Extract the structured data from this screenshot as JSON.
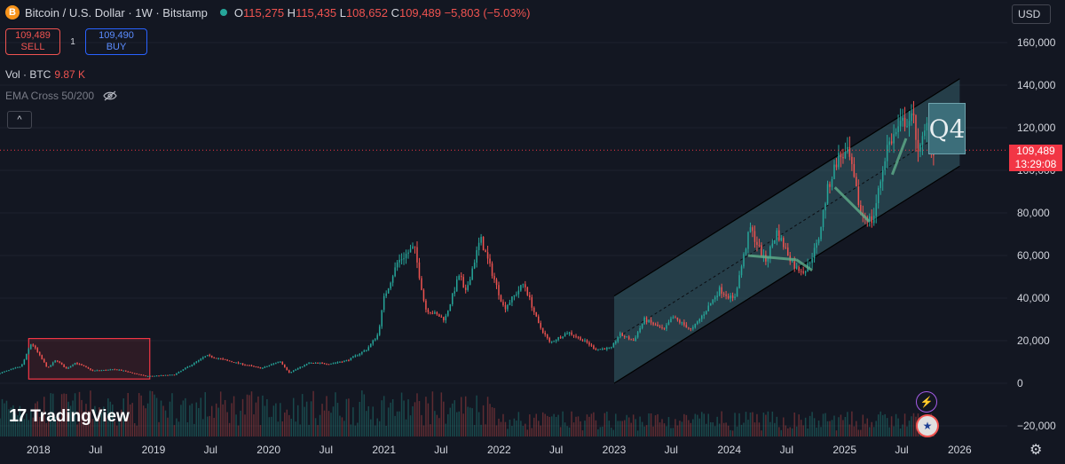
{
  "header": {
    "coin_icon": "B",
    "title": "Bitcoin / U.S. Dollar · 1W · Bitstamp",
    "o_key": "O",
    "o_val": "115,275",
    "h_key": "H",
    "h_val": "115,435",
    "l_key": "L",
    "l_val": "108,652",
    "c_key": "C",
    "c_val": "109,489",
    "change": "−5,803 (−5.03%)"
  },
  "trade": {
    "sell_price": "109,489",
    "sell_label": "SELL",
    "spread": "1",
    "buy_price": "109,490",
    "buy_label": "BUY"
  },
  "indicators": {
    "vol_label": "Vol · BTC",
    "vol_value": "9.87 K",
    "ema_label": "EMA Cross 50/200",
    "ema_visibility_icon": "eye-crossed-icon",
    "collapse_icon": "chevron-up-icon"
  },
  "currency": "USD",
  "price_badge": {
    "price": "109,489",
    "countdown": "13:29:08"
  },
  "annotation": {
    "q4_label": "Q4"
  },
  "branding": {
    "logo_glyph": "17",
    "logo_text": "TradingView"
  },
  "icons": [
    "lightning-icon",
    "us-flag-icon",
    "settings-gear-icon"
  ],
  "colors": {
    "up": "#26a69a",
    "down": "#ef5350",
    "channel": "#3c6e7a",
    "highlight_box": "#f23645",
    "background": "#131722"
  },
  "chart_data": {
    "type": "candlestick",
    "interval": "1W",
    "y_ticks": [
      "160,000",
      "140,000",
      "120,000",
      "100,000",
      "80,000",
      "60,000",
      "40,000",
      "20,000",
      "0",
      "−20,000"
    ],
    "y_range": [
      -20000,
      165000
    ],
    "x_ticks": [
      "2018",
      "Jul",
      "2019",
      "Jul",
      "2020",
      "Jul",
      "2021",
      "Jul",
      "2022",
      "Jul",
      "2023",
      "Jul",
      "2024",
      "Jul",
      "2025",
      "Jul",
      "2026"
    ],
    "x_range": [
      "2017-09-01",
      "2026-06-01"
    ],
    "last_price": 109489,
    "price_path": [
      [
        "2017-09-01",
        4500
      ],
      [
        "2017-11-15",
        8000
      ],
      [
        "2017-12-17",
        19000
      ],
      [
        "2018-02-06",
        7000
      ],
      [
        "2018-03-05",
        11000
      ],
      [
        "2018-04-06",
        6800
      ],
      [
        "2018-05-05",
        9700
      ],
      [
        "2018-06-29",
        5900
      ],
      [
        "2018-09-15",
        6500
      ],
      [
        "2018-11-20",
        4200
      ],
      [
        "2018-12-15",
        3300
      ],
      [
        "2019-03-15",
        4000
      ],
      [
        "2019-06-26",
        13000
      ],
      [
        "2019-09-15",
        10000
      ],
      [
        "2019-12-17",
        7000
      ],
      [
        "2020-02-13",
        10400
      ],
      [
        "2020-03-13",
        5000
      ],
      [
        "2020-05-15",
        9500
      ],
      [
        "2020-07-20",
        9200
      ],
      [
        "2020-09-15",
        10800
      ],
      [
        "2020-11-15",
        16000
      ],
      [
        "2020-12-20",
        23000
      ],
      [
        "2021-01-08",
        40000
      ],
      [
        "2021-02-20",
        57000
      ],
      [
        "2021-04-14",
        64000
      ],
      [
        "2021-05-19",
        35000
      ],
      [
        "2021-07-20",
        30000
      ],
      [
        "2021-09-06",
        52000
      ],
      [
        "2021-09-21",
        41000
      ],
      [
        "2021-11-10",
        68000
      ],
      [
        "2022-01-24",
        35000
      ],
      [
        "2022-03-28",
        47000
      ],
      [
        "2022-05-12",
        28000
      ],
      [
        "2022-06-18",
        19000
      ],
      [
        "2022-08-15",
        24000
      ],
      [
        "2022-10-15",
        19000
      ],
      [
        "2022-11-09",
        16000
      ],
      [
        "2022-12-30",
        16500
      ],
      [
        "2023-01-25",
        23000
      ],
      [
        "2023-03-10",
        20000
      ],
      [
        "2023-04-14",
        30000
      ],
      [
        "2023-06-15",
        25000
      ],
      [
        "2023-07-13",
        31000
      ],
      [
        "2023-09-11",
        25000
      ],
      [
        "2023-10-25",
        34000
      ],
      [
        "2023-12-08",
        44000
      ],
      [
        "2024-01-23",
        39000
      ],
      [
        "2024-03-14",
        73000
      ],
      [
        "2024-05-01",
        57000
      ],
      [
        "2024-06-07",
        71000
      ],
      [
        "2024-08-05",
        54000
      ],
      [
        "2024-09-06",
        53000
      ],
      [
        "2024-10-15",
        66000
      ],
      [
        "2024-11-13",
        90000
      ],
      [
        "2024-12-17",
        106000
      ],
      [
        "2025-01-20",
        108000
      ],
      [
        "2025-02-28",
        80000
      ],
      [
        "2025-04-07",
        76000
      ],
      [
        "2025-05-22",
        111000
      ],
      [
        "2025-07-14",
        123000
      ],
      [
        "2025-08-14",
        124000
      ],
      [
        "2025-09-01",
        108000
      ],
      [
        "2025-10-06",
        126000
      ],
      [
        "2025-10-10",
        109489
      ]
    ],
    "volume_max_ratio": 0.13,
    "annotations": [
      {
        "type": "rectangle",
        "from": [
          "2017-12-01",
          21000
        ],
        "to": [
          "2018-12-20",
          2000
        ]
      },
      {
        "type": "parallel_channel",
        "lower": [
          [
            "2023-01-01",
            0
          ],
          [
            "2026-01-01",
            102000
          ]
        ],
        "upper": [
          [
            "2023-01-01",
            41000
          ],
          [
            "2026-01-01",
            143000
          ]
        ]
      }
    ]
  }
}
